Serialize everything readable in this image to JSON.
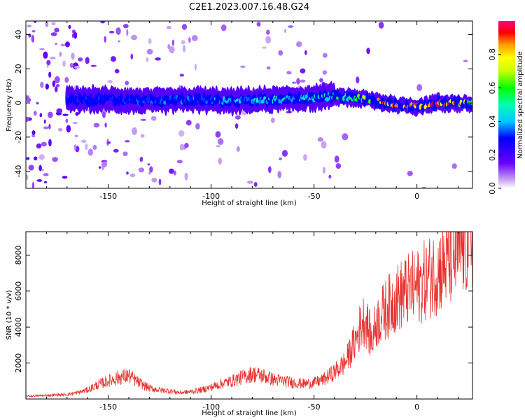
{
  "title": "C2E1.2023.007.16.48.G24",
  "chart_data": [
    {
      "type": "heatmap",
      "xlabel": "Height of straight line (km)",
      "ylabel": "Frequency (Hz)",
      "xlim": [
        -190,
        27
      ],
      "ylim": [
        -50,
        48
      ],
      "xticks": [
        -150,
        -100,
        -50,
        0
      ],
      "yticks": [
        -40,
        -20,
        0,
        20,
        40
      ],
      "colorbar": {
        "label": "Normalized spectral amplitude",
        "range": [
          0,
          1
        ],
        "ticks": [
          0.0,
          0.2,
          0.4,
          0.6,
          0.8
        ],
        "colormap": "rainbow"
      },
      "ridge": {
        "x": [
          -170,
          -150,
          -130,
          -110,
          -90,
          -70,
          -50,
          -40,
          -30,
          -20,
          -10,
          0,
          10,
          20,
          27
        ],
        "center_hz": [
          2,
          2,
          1,
          2,
          1,
          2,
          3,
          4,
          3,
          1,
          -1,
          -2,
          0,
          0,
          -1
        ],
        "peak_amplitude": [
          0.3,
          0.3,
          0.35,
          0.35,
          0.4,
          0.45,
          0.45,
          0.55,
          0.6,
          0.8,
          0.9,
          0.95,
          0.95,
          0.85,
          0.6
        ]
      }
    },
    {
      "type": "line",
      "xlabel": "Height of straight line (km)",
      "ylabel": "SNR (10 * v/v)",
      "xlim": [
        -190,
        27
      ],
      "ylim": [
        0,
        9300
      ],
      "xticks": [
        -150,
        -100,
        -50,
        0
      ],
      "yticks": [
        2000,
        4000,
        6000,
        8000
      ],
      "color": "#e8312e",
      "series": [
        {
          "x": [
            -190,
            -180,
            -170,
            -165,
            -160,
            -155,
            -150,
            -145,
            -140,
            -135,
            -130,
            -125,
            -120,
            -115,
            -110,
            -105,
            -100,
            -95,
            -90,
            -85,
            -80,
            -75,
            -70,
            -65,
            -60,
            -55,
            -50,
            -45,
            -40,
            -35,
            -30,
            -27,
            -25,
            -22,
            -20,
            -15,
            -10,
            -5,
            0,
            5,
            10,
            15,
            20,
            25,
            27
          ],
          "y": [
            150,
            200,
            250,
            350,
            500,
            800,
            1000,
            1200,
            1300,
            900,
            600,
            500,
            450,
            350,
            400,
            500,
            650,
            850,
            1000,
            1200,
            1400,
            1300,
            1100,
            1000,
            900,
            850,
            900,
            1100,
            1500,
            2000,
            3200,
            4200,
            4500,
            3200,
            4200,
            5000,
            5600,
            6000,
            6200,
            6700,
            7100,
            7600,
            8100,
            8700,
            9000
          ]
        }
      ]
    }
  ]
}
